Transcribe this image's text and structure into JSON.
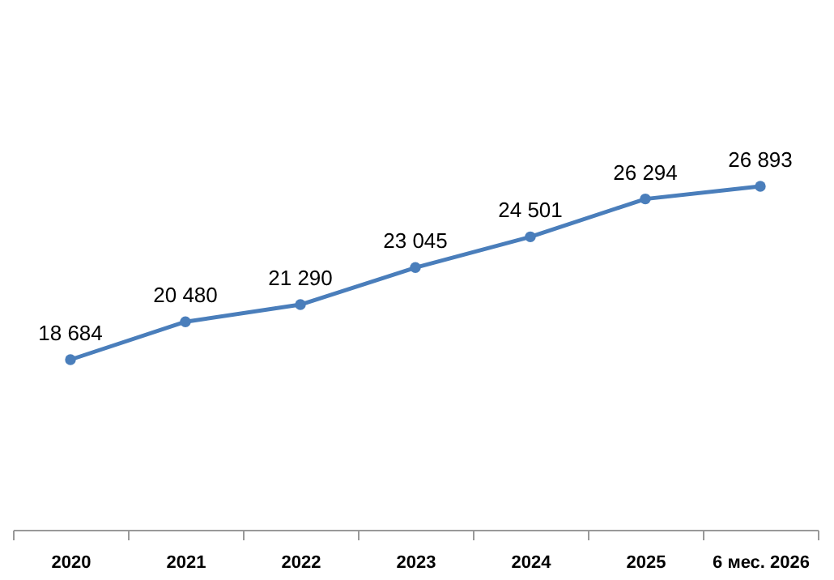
{
  "chart_data": {
    "type": "line",
    "categories": [
      "2020",
      "2021",
      "2022",
      "2023",
      "2024",
      "2025",
      "6 мес. 2026"
    ],
    "series": [
      {
        "color": "#4a7ebb",
        "values": [
          18684,
          20480,
          21290,
          23045,
          24501,
          26294,
          26893
        ],
        "value_labels": [
          "18 684",
          "20 480",
          "21 290",
          "23 045",
          "24 501",
          "26 294",
          "26 893"
        ]
      }
    ],
    "marker": "circle",
    "line_style": "solid"
  }
}
